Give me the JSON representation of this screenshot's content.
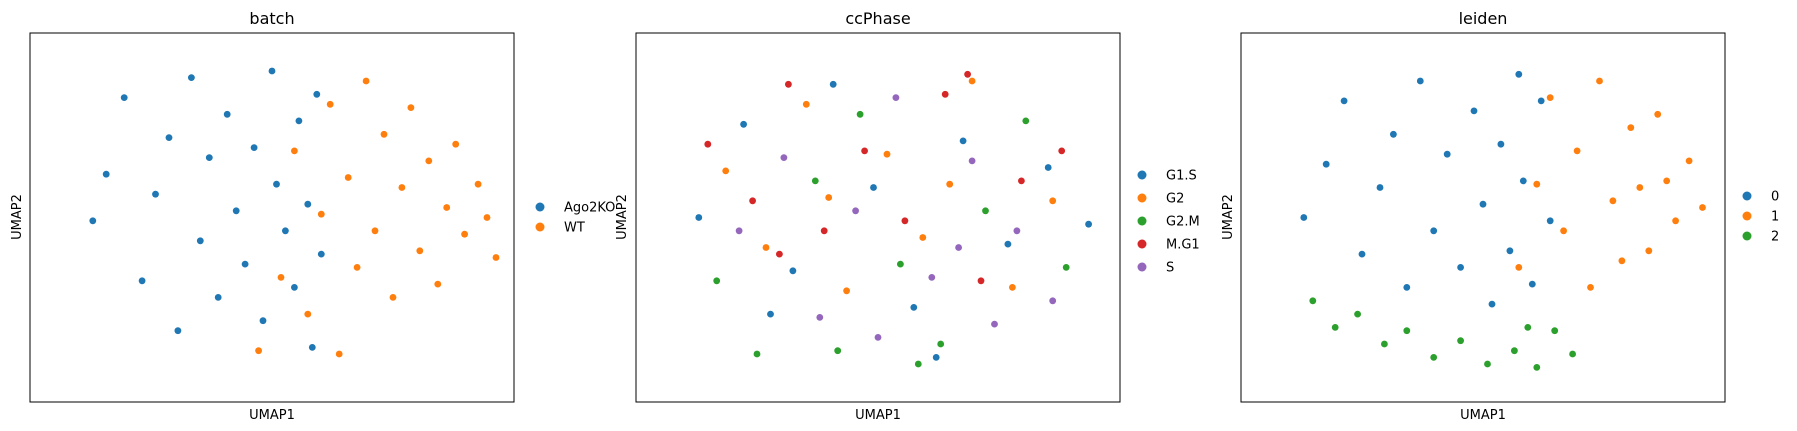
{
  "palette": {
    "blue": "#1f77b4",
    "orange": "#ff7f0e",
    "green": "#2ca02c",
    "red": "#d62728",
    "purple": "#9467bd"
  },
  "chart_data": [
    {
      "type": "scatter",
      "title": "batch",
      "xlabel": "UMAP1",
      "ylabel": "UMAP2",
      "xlim": [
        0,
        10
      ],
      "ylim": [
        0,
        10
      ],
      "grid": false,
      "ticks": false,
      "legend_position": "right",
      "legend": [
        {
          "label": "Ago2KO",
          "color": "#1f77b4"
        },
        {
          "label": "WT",
          "color": "#ff7f0e"
        }
      ],
      "series": [
        {
          "category": "Ago2KO",
          "color": "#1f77b4",
          "points": [
            [
              1.0,
              4.9
            ],
            [
              1.3,
              6.3
            ],
            [
              1.7,
              8.6
            ],
            [
              2.1,
              3.1
            ],
            [
              2.4,
              5.7
            ],
            [
              2.7,
              7.4
            ],
            [
              2.9,
              1.6
            ],
            [
              3.2,
              9.2
            ],
            [
              3.4,
              4.3
            ],
            [
              3.6,
              6.8
            ],
            [
              3.8,
              2.6
            ],
            [
              4.0,
              8.1
            ],
            [
              4.2,
              5.2
            ],
            [
              4.4,
              3.6
            ],
            [
              4.6,
              7.1
            ],
            [
              4.8,
              1.9
            ],
            [
              5.0,
              9.4
            ],
            [
              5.1,
              6.0
            ],
            [
              5.3,
              4.6
            ],
            [
              5.5,
              2.9
            ],
            [
              5.6,
              7.9
            ],
            [
              5.8,
              5.4
            ],
            [
              5.9,
              1.1
            ],
            [
              6.0,
              8.7
            ],
            [
              6.1,
              3.9
            ]
          ]
        },
        {
          "category": "WT",
          "color": "#ff7f0e",
          "points": [
            [
              4.7,
              1.0
            ],
            [
              5.2,
              3.2
            ],
            [
              5.5,
              7.0
            ],
            [
              5.8,
              2.1
            ],
            [
              6.1,
              5.1
            ],
            [
              6.3,
              8.4
            ],
            [
              6.5,
              0.9
            ],
            [
              6.7,
              6.2
            ],
            [
              6.9,
              3.5
            ],
            [
              7.1,
              9.1
            ],
            [
              7.3,
              4.6
            ],
            [
              7.5,
              7.5
            ],
            [
              7.7,
              2.6
            ],
            [
              7.9,
              5.9
            ],
            [
              8.1,
              8.3
            ],
            [
              8.3,
              4.0
            ],
            [
              8.5,
              6.7
            ],
            [
              8.7,
              3.0
            ],
            [
              8.9,
              5.3
            ],
            [
              9.1,
              7.2
            ],
            [
              9.3,
              4.5
            ],
            [
              9.6,
              6.0
            ],
            [
              9.8,
              5.0
            ],
            [
              10.0,
              3.8
            ]
          ]
        }
      ]
    },
    {
      "type": "scatter",
      "title": "ccPhase",
      "xlabel": "UMAP1",
      "ylabel": "UMAP2",
      "xlim": [
        0,
        10
      ],
      "ylim": [
        0,
        10
      ],
      "grid": false,
      "ticks": false,
      "legend_position": "right",
      "legend": [
        {
          "label": "G1.S",
          "color": "#1f77b4"
        },
        {
          "label": "G2",
          "color": "#ff7f0e"
        },
        {
          "label": "G2.M",
          "color": "#2ca02c"
        },
        {
          "label": "M.G1",
          "color": "#d62728"
        },
        {
          "label": "S",
          "color": "#9467bd"
        }
      ],
      "series": [
        {
          "category": "G1.S",
          "color": "#1f77b4",
          "points": [
            [
              1.0,
              5.0
            ],
            [
              2.0,
              7.8
            ],
            [
              3.1,
              3.4
            ],
            [
              4.0,
              9.0
            ],
            [
              4.9,
              5.9
            ],
            [
              5.8,
              2.3
            ],
            [
              6.9,
              7.3
            ],
            [
              7.9,
              4.2
            ],
            [
              8.8,
              6.5
            ],
            [
              9.7,
              4.8
            ],
            [
              2.6,
              2.1
            ],
            [
              6.3,
              0.8
            ]
          ]
        },
        {
          "category": "G2",
          "color": "#ff7f0e",
          "points": [
            [
              1.6,
              6.4
            ],
            [
              2.5,
              4.1
            ],
            [
              3.4,
              8.4
            ],
            [
              4.3,
              2.8
            ],
            [
              5.2,
              6.9
            ],
            [
              6.0,
              4.4
            ],
            [
              7.1,
              9.1
            ],
            [
              8.0,
              2.9
            ],
            [
              8.9,
              5.5
            ],
            [
              3.9,
              5.6
            ],
            [
              6.6,
              6.0
            ]
          ]
        },
        {
          "category": "G2.M",
          "color": "#2ca02c",
          "points": [
            [
              1.4,
              3.1
            ],
            [
              2.3,
              0.9
            ],
            [
              3.6,
              6.1
            ],
            [
              4.6,
              8.1
            ],
            [
              5.5,
              3.6
            ],
            [
              6.4,
              1.2
            ],
            [
              7.4,
              5.2
            ],
            [
              8.3,
              7.9
            ],
            [
              9.2,
              3.5
            ],
            [
              5.9,
              0.6
            ],
            [
              4.1,
              1.0
            ]
          ]
        },
        {
          "category": "M.G1",
          "color": "#d62728",
          "points": [
            [
              1.2,
              7.2
            ],
            [
              2.2,
              5.5
            ],
            [
              3.0,
              9.0
            ],
            [
              3.8,
              4.6
            ],
            [
              4.7,
              7.0
            ],
            [
              5.6,
              4.9
            ],
            [
              6.5,
              8.7
            ],
            [
              7.3,
              3.1
            ],
            [
              8.2,
              6.1
            ],
            [
              9.1,
              7.0
            ],
            [
              7.0,
              9.3
            ],
            [
              2.8,
              3.9
            ]
          ]
        },
        {
          "category": "S",
          "color": "#9467bd",
          "points": [
            [
              1.9,
              4.6
            ],
            [
              2.9,
              6.8
            ],
            [
              3.7,
              2.0
            ],
            [
              4.5,
              5.2
            ],
            [
              5.4,
              8.6
            ],
            [
              6.2,
              3.2
            ],
            [
              7.1,
              6.7
            ],
            [
              8.1,
              4.6
            ],
            [
              8.9,
              2.5
            ],
            [
              5.0,
              1.4
            ],
            [
              7.6,
              1.8
            ],
            [
              6.8,
              4.1
            ]
          ]
        }
      ]
    },
    {
      "type": "scatter",
      "title": "leiden",
      "xlabel": "UMAP1",
      "ylabel": "UMAP2",
      "xlim": [
        0,
        10
      ],
      "ylim": [
        0,
        10
      ],
      "grid": false,
      "ticks": false,
      "legend_position": "right",
      "legend": [
        {
          "label": "0",
          "color": "#1f77b4"
        },
        {
          "label": "1",
          "color": "#ff7f0e"
        },
        {
          "label": "2",
          "color": "#2ca02c"
        }
      ],
      "series": [
        {
          "category": "0",
          "color": "#1f77b4",
          "points": [
            [
              1.0,
              5.0
            ],
            [
              1.5,
              6.6
            ],
            [
              1.9,
              8.5
            ],
            [
              2.3,
              3.9
            ],
            [
              2.7,
              5.9
            ],
            [
              3.0,
              7.5
            ],
            [
              3.3,
              2.9
            ],
            [
              3.6,
              9.1
            ],
            [
              3.9,
              4.6
            ],
            [
              4.2,
              6.9
            ],
            [
              4.5,
              3.5
            ],
            [
              4.8,
              8.2
            ],
            [
              5.0,
              5.4
            ],
            [
              5.2,
              2.4
            ],
            [
              5.4,
              7.2
            ],
            [
              5.6,
              4.0
            ],
            [
              5.8,
              9.3
            ],
            [
              5.9,
              6.1
            ],
            [
              6.1,
              3.0
            ],
            [
              6.3,
              8.5
            ],
            [
              6.5,
              4.9
            ]
          ]
        },
        {
          "category": "1",
          "color": "#ff7f0e",
          "points": [
            [
              5.8,
              3.5
            ],
            [
              6.2,
              6.0
            ],
            [
              6.5,
              8.6
            ],
            [
              6.8,
              4.6
            ],
            [
              7.1,
              7.0
            ],
            [
              7.4,
              2.9
            ],
            [
              7.6,
              9.1
            ],
            [
              7.9,
              5.5
            ],
            [
              8.1,
              3.7
            ],
            [
              8.3,
              7.7
            ],
            [
              8.5,
              5.9
            ],
            [
              8.7,
              4.0
            ],
            [
              8.9,
              8.1
            ],
            [
              9.1,
              6.1
            ],
            [
              9.3,
              4.9
            ],
            [
              9.6,
              6.7
            ],
            [
              9.9,
              5.3
            ]
          ]
        },
        {
          "category": "2",
          "color": "#2ca02c",
          "points": [
            [
              1.2,
              2.5
            ],
            [
              1.7,
              1.7
            ],
            [
              2.2,
              2.1
            ],
            [
              2.8,
              1.2
            ],
            [
              3.3,
              1.6
            ],
            [
              3.9,
              0.8
            ],
            [
              4.5,
              1.3
            ],
            [
              5.1,
              0.6
            ],
            [
              5.7,
              1.0
            ],
            [
              6.2,
              0.5
            ],
            [
              6.6,
              1.6
            ],
            [
              7.0,
              0.9
            ],
            [
              6.0,
              1.7
            ]
          ]
        }
      ]
    }
  ]
}
